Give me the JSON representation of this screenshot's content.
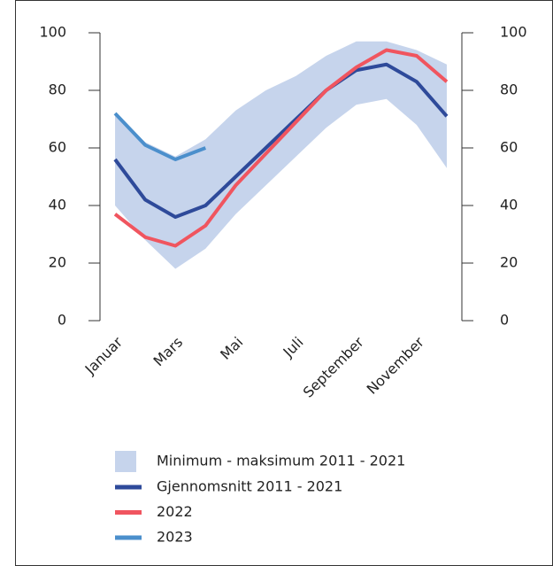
{
  "chart_data": {
    "type": "line",
    "categories": [
      "Januar",
      null,
      "Mars",
      null,
      "Mai",
      null,
      "Juli",
      null,
      "September",
      null,
      "November",
      null
    ],
    "band": {
      "name": "Minimum - maksimum 2011 - 2021",
      "color": "#c6d4ec",
      "min": [
        40,
        28,
        18,
        25,
        37,
        47,
        57,
        67,
        75,
        77,
        68,
        53
      ],
      "max": [
        72,
        62,
        57,
        63,
        73,
        80,
        85,
        92,
        97,
        97,
        94,
        89
      ]
    },
    "series": [
      {
        "name": "Gjennomsnitt 2011 - 2021",
        "color": "#2e4a9a",
        "values": [
          56,
          42,
          36,
          40,
          50,
          60,
          70,
          80,
          87,
          89,
          83,
          71
        ]
      },
      {
        "name": "2022",
        "color": "#f0555f",
        "values": [
          37,
          29,
          26,
          33,
          47,
          58,
          69,
          80,
          88,
          94,
          92,
          83
        ]
      },
      {
        "name": "2023",
        "color": "#4b8fcc",
        "values": [
          72,
          61,
          56,
          60,
          null,
          null,
          null,
          null,
          null,
          null,
          null,
          null
        ]
      }
    ],
    "ylim": [
      0,
      100
    ],
    "yticks": [
      0,
      20,
      40,
      60,
      80,
      100
    ],
    "y2lim": [
      0,
      100
    ],
    "y2ticks": [
      0,
      20,
      40,
      60,
      80,
      100
    ]
  }
}
